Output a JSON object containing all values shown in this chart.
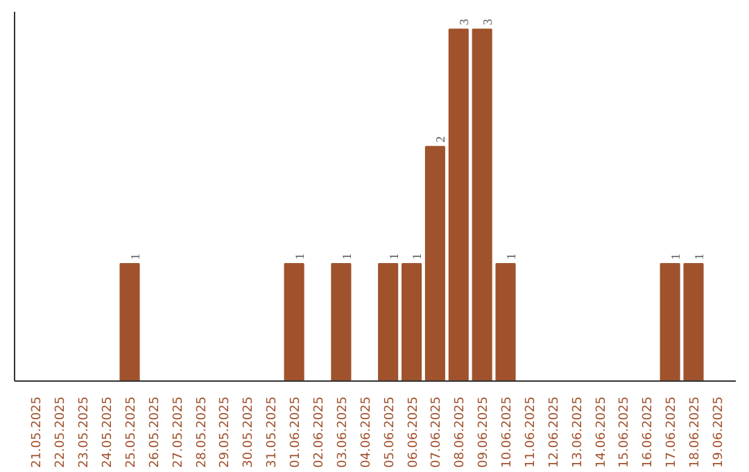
{
  "chart_data": {
    "type": "bar",
    "categories": [
      "21.05.2025",
      "22.05.2025",
      "23.05.2025",
      "24.05.2025",
      "25.05.2025",
      "26.05.2025",
      "27.05.2025",
      "28.05.2025",
      "29.05.2025",
      "30.05.2025",
      "31.05.2025",
      "01.06.2025",
      "02.06.2025",
      "03.06.2025",
      "04.06.2025",
      "05.06.2025",
      "06.06.2025",
      "07.06.2025",
      "08.06.2025",
      "09.06.2025",
      "10.06.2025",
      "11.06.2025",
      "12.06.2025",
      "13.06.2025",
      "14.06.2025",
      "15.06.2025",
      "16.06.2025",
      "17.06.2025",
      "18.06.2025",
      "19.06.2025"
    ],
    "values": [
      0,
      0,
      0,
      0,
      1,
      0,
      0,
      0,
      0,
      0,
      0,
      1,
      0,
      1,
      0,
      1,
      1,
      2,
      3,
      3,
      1,
      0,
      0,
      0,
      0,
      0,
      0,
      1,
      1,
      0
    ],
    "value_labels": [
      null,
      null,
      null,
      null,
      "1",
      null,
      null,
      null,
      null,
      null,
      null,
      "1",
      null,
      "1",
      null,
      "1",
      "1",
      "2",
      "3",
      "3",
      "1",
      null,
      null,
      null,
      null,
      null,
      null,
      "1",
      "1",
      null
    ],
    "color": "#a0522d",
    "ylim": [
      0,
      3.15
    ],
    "tick_labels": "x"
  }
}
